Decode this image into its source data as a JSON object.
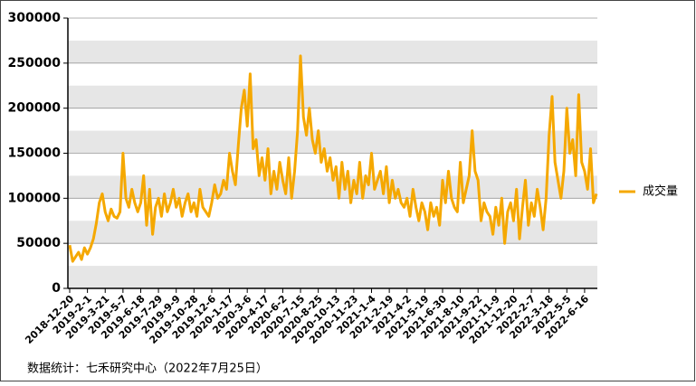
{
  "chart_data": {
    "type": "line",
    "categories": [
      "2018-12-20",
      null,
      null,
      null,
      null,
      null,
      "2019-2-1",
      null,
      null,
      null,
      null,
      null,
      "2019-3-21",
      null,
      null,
      null,
      null,
      null,
      "2019-5-7",
      null,
      null,
      null,
      null,
      null,
      "2019-6-18",
      null,
      null,
      null,
      null,
      null,
      "2019-7-29",
      null,
      null,
      null,
      null,
      null,
      "2019-9-9",
      null,
      null,
      null,
      null,
      null,
      "2019-10-28",
      null,
      null,
      null,
      null,
      null,
      "2019-12-6",
      null,
      null,
      null,
      null,
      null,
      "2020-1-17",
      null,
      null,
      null,
      null,
      null,
      "2020-3-6",
      null,
      null,
      null,
      null,
      null,
      "2020-4-17",
      null,
      null,
      null,
      null,
      null,
      "2020-6-2",
      null,
      null,
      null,
      null,
      null,
      "2020-7-15",
      null,
      null,
      null,
      null,
      null,
      "2020-8-25",
      null,
      null,
      null,
      null,
      null,
      "2020-10-13",
      null,
      null,
      null,
      null,
      null,
      "2020-11-23",
      null,
      null,
      null,
      null,
      null,
      "2021-1-4",
      null,
      null,
      null,
      null,
      null,
      "2021-2-19",
      null,
      null,
      null,
      null,
      null,
      "2021-4-2",
      null,
      null,
      null,
      null,
      null,
      "2021-5-19",
      null,
      null,
      null,
      null,
      null,
      "2021-6-30",
      null,
      null,
      null,
      null,
      null,
      "2021-8-10",
      null,
      null,
      null,
      null,
      null,
      "2021-9-22",
      null,
      null,
      null,
      null,
      null,
      "2021-11-9",
      null,
      null,
      null,
      null,
      null,
      "2021-12-20",
      null,
      null,
      null,
      null,
      null,
      "2022-2-7",
      null,
      null,
      null,
      null,
      null,
      "2022-3-18",
      null,
      null,
      null,
      null,
      null,
      "2022-5-5",
      null,
      null,
      null,
      null,
      null,
      "2022-6-16",
      null,
      null,
      null,
      null
    ],
    "series": [
      {
        "name": "成交量",
        "color": "#f5a800",
        "values": [
          48000,
          30000,
          35000,
          40000,
          32000,
          45000,
          38000,
          45000,
          55000,
          72000,
          95000,
          105000,
          85000,
          75000,
          88000,
          80000,
          78000,
          85000,
          150000,
          100000,
          90000,
          110000,
          95000,
          85000,
          95000,
          125000,
          70000,
          110000,
          60000,
          90000,
          100000,
          80000,
          105000,
          85000,
          95000,
          110000,
          90000,
          100000,
          80000,
          95000,
          105000,
          85000,
          95000,
          80000,
          110000,
          90000,
          85000,
          80000,
          95000,
          115000,
          100000,
          105000,
          120000,
          110000,
          150000,
          130000,
          115000,
          160000,
          200000,
          220000,
          180000,
          238000,
          155000,
          165000,
          125000,
          145000,
          120000,
          155000,
          105000,
          130000,
          110000,
          140000,
          120000,
          105000,
          145000,
          100000,
          130000,
          175000,
          258000,
          190000,
          170000,
          200000,
          165000,
          150000,
          175000,
          140000,
          155000,
          130000,
          145000,
          120000,
          135000,
          100000,
          140000,
          110000,
          130000,
          95000,
          120000,
          105000,
          140000,
          100000,
          125000,
          115000,
          150000,
          110000,
          120000,
          130000,
          105000,
          135000,
          95000,
          120000,
          100000,
          110000,
          95000,
          90000,
          100000,
          80000,
          110000,
          90000,
          75000,
          95000,
          85000,
          65000,
          95000,
          80000,
          90000,
          70000,
          120000,
          95000,
          130000,
          100000,
          90000,
          85000,
          140000,
          95000,
          110000,
          125000,
          175000,
          130000,
          120000,
          75000,
          95000,
          85000,
          80000,
          60000,
          90000,
          70000,
          100000,
          50000,
          85000,
          95000,
          75000,
          110000,
          55000,
          90000,
          120000,
          70000,
          95000,
          80000,
          110000,
          90000,
          65000,
          100000,
          170000,
          213000,
          140000,
          120000,
          100000,
          130000,
          200000,
          150000,
          165000,
          125000,
          215000,
          140000,
          130000,
          110000,
          155000,
          95000,
          105000
        ]
      }
    ],
    "ylim": [
      0,
      300000
    ],
    "yticks": [
      0,
      50000,
      100000,
      150000,
      200000,
      250000,
      300000
    ],
    "grid": true,
    "legend": "right",
    "source": "数据统计：七禾研究中心（2022年7月25日）"
  }
}
